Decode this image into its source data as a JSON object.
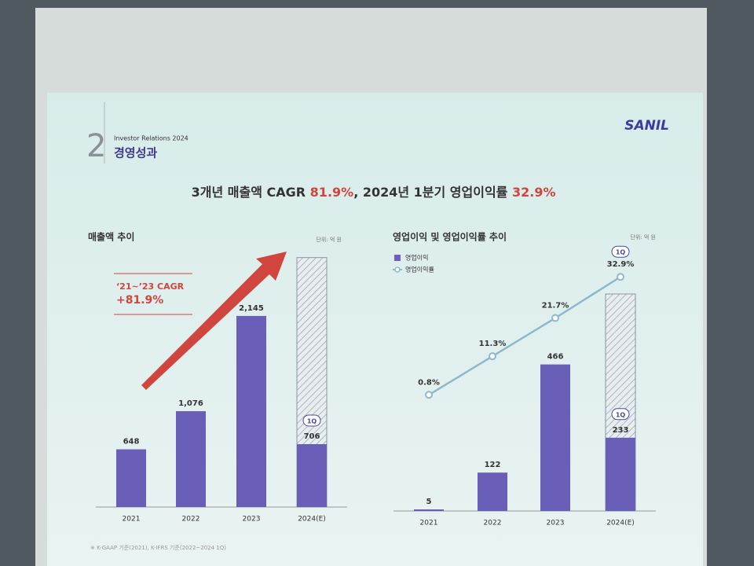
{
  "header": {
    "section_number": "2",
    "subtitle": "Investor Relations 2024",
    "title": "경영성과",
    "logo": "SANIL"
  },
  "headline": [
    "3개년 매출액 CAGR ",
    "81.9%",
    ", 2024년 1분기 영업이익률 ",
    "32.9%"
  ],
  "footnote": "※ K-GAAP 기준(2021), K-IFRS 기준(2022~2024 1Q)",
  "chart_data": [
    {
      "type": "bar",
      "title": "매출액 추이",
      "unit": "단위: 억 원",
      "categories": [
        "2021",
        "2022",
        "2023",
        "2024(E)"
      ],
      "values": [
        648,
        1076,
        2145,
        706
      ],
      "value_labels": [
        "648",
        "1,076",
        "2,145",
        "706"
      ],
      "estimate_values": [
        null,
        null,
        null,
        2800
      ],
      "color": "#6a5fb8",
      "badge": "1Q",
      "annotation": {
        "label": "‘21~’23 CAGR",
        "value": "+81.9%"
      },
      "ylim": [
        0,
        3000
      ]
    },
    {
      "type": "combo",
      "title": "영업이익 및 영업이익률 추이",
      "unit": "단위: 억 원",
      "categories": [
        "2021",
        "2022",
        "2023",
        "2024(E)"
      ],
      "series": [
        {
          "name": "영업이익",
          "type": "bar",
          "color": "#6a5fb8",
          "values": [
            5,
            122,
            466,
            233
          ],
          "estimate_values": [
            null,
            null,
            null,
            690
          ]
        },
        {
          "name": "영업이익률",
          "type": "line",
          "axis": "y2",
          "color": "#8fb8cc",
          "values": [
            0.8,
            11.3,
            21.7,
            32.9
          ],
          "value_labels": [
            "0.8%",
            "11.3%",
            "21.7%",
            "32.9%"
          ]
        }
      ],
      "badge": "1Q",
      "ylim": [
        0,
        750
      ],
      "y2lim": [
        0,
        40
      ]
    }
  ]
}
